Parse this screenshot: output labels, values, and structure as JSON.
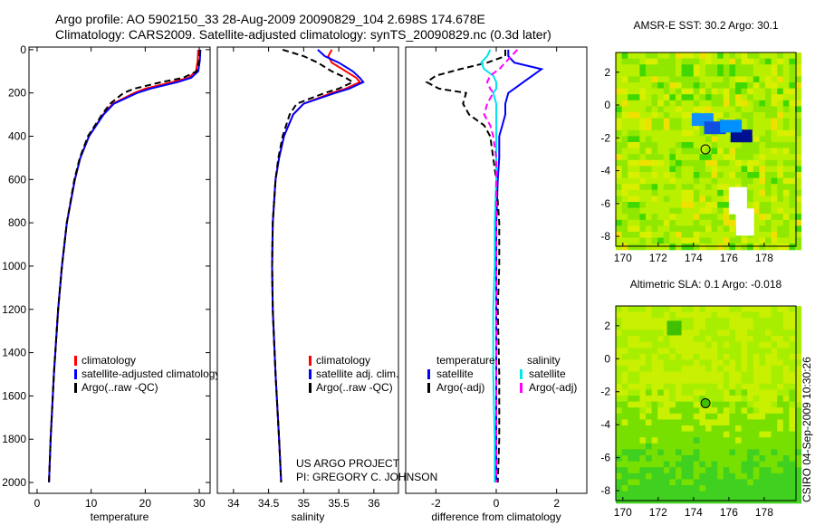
{
  "title_line1": "Argo profile: AO 5902150_33 28-Aug-2009 20090829_104 2.698S 174.678E",
  "title_line2": "Climatology: CARS2009. Satellite-adjusted climatology: synTS_20090829.nc (0.3d later)",
  "credit_line1": "US ARGO PROJECT",
  "credit_line2": "PI: GREGORY C. JOHNSON",
  "timestamp": "CSIRO 04-Sep-2009 10:30:26",
  "chart_data": [
    {
      "type": "line",
      "xlabel": "temperature",
      "xlim": [
        -1.5,
        32
      ],
      "ylim": [
        2050,
        0
      ],
      "xticks": [
        0,
        10,
        20,
        30
      ],
      "yticks": [
        0,
        200,
        400,
        600,
        800,
        1000,
        1200,
        1400,
        1600,
        1800,
        2000
      ],
      "depth": [
        0,
        50,
        100,
        130,
        150,
        180,
        200,
        250,
        300,
        400,
        500,
        600,
        800,
        1000,
        1200,
        1500,
        1800,
        2000
      ],
      "series": [
        {
          "name": "climatology",
          "color": "#ff0000",
          "dash": false,
          "values": [
            29.8,
            29.7,
            29.4,
            28,
            25,
            20,
            18,
            14,
            12.2,
            9.6,
            8,
            7,
            5.5,
            4.6,
            3.9,
            3.1,
            2.5,
            2.2
          ]
        },
        {
          "name": "satellite-adjusted climatology",
          "color": "#0000ff",
          "dash": false,
          "values": [
            30.2,
            30.1,
            29.8,
            28.5,
            26,
            21,
            18.5,
            14.2,
            12.3,
            9.6,
            8,
            7,
            5.5,
            4.6,
            3.9,
            3.1,
            2.5,
            2.2
          ]
        },
        {
          "name": "Argo(..raw -QC)",
          "color": "#000000",
          "dash": true,
          "values": [
            30.1,
            30.0,
            29.5,
            27,
            23,
            18,
            16,
            13.5,
            12,
            9.4,
            7.9,
            6.9,
            5.5,
            4.6,
            3.9,
            3.1,
            2.5,
            2.2
          ]
        }
      ]
    },
    {
      "type": "line",
      "xlabel": "salinity",
      "xlim": [
        33.77,
        36.35
      ],
      "ylim": [
        2050,
        0
      ],
      "xticks": [
        34,
        34.5,
        35,
        35.5,
        36
      ],
      "yticks": [],
      "depth": [
        0,
        30,
        60,
        100,
        130,
        150,
        180,
        200,
        250,
        300,
        400,
        500,
        600,
        800,
        1000,
        1200,
        1500,
        1800,
        2000
      ],
      "series": [
        {
          "name": "climatology",
          "color": "#ff0000",
          "dash": false,
          "values": [
            35.4,
            35.35,
            35.4,
            35.6,
            35.75,
            35.8,
            35.6,
            35.4,
            35.0,
            34.85,
            34.72,
            34.65,
            34.6,
            34.56,
            34.55,
            34.56,
            34.6,
            34.65,
            34.68
          ]
        },
        {
          "name": "satellite adj. clim.",
          "color": "#0000ff",
          "dash": false,
          "values": [
            35.2,
            35.3,
            35.5,
            35.7,
            35.8,
            35.85,
            35.65,
            35.45,
            35.0,
            34.85,
            34.72,
            34.65,
            34.6,
            34.56,
            34.55,
            34.56,
            34.6,
            34.65,
            34.68
          ]
        },
        {
          "name": "Argo(..raw -QC)",
          "color": "#000000",
          "dash": true,
          "values": [
            34.7,
            35.0,
            35.2,
            35.4,
            35.6,
            35.7,
            35.5,
            35.3,
            34.9,
            34.8,
            34.7,
            34.64,
            34.6,
            34.56,
            34.55,
            34.56,
            34.6,
            34.65,
            34.68
          ]
        }
      ]
    },
    {
      "type": "line",
      "xlabel": "difference from climatology",
      "xlim": [
        -3,
        3
      ],
      "ylim": [
        2050,
        0
      ],
      "xticks": [
        -2,
        0,
        2
      ],
      "yticks": [],
      "depth": [
        0,
        30,
        60,
        90,
        120,
        150,
        180,
        200,
        250,
        300,
        350,
        400,
        500,
        600,
        800,
        1000,
        1200,
        1500,
        1800,
        2000
      ],
      "legend_headers": [
        "temperature",
        "salinity"
      ],
      "series": [
        {
          "name": "satellite",
          "group": "temperature",
          "color": "#0000ff",
          "dash": false,
          "values": [
            0.4,
            0.4,
            0.6,
            1.5,
            1.2,
            0.9,
            0.6,
            0.4,
            0.3,
            0.3,
            0.2,
            0.1,
            0.1,
            0.05,
            0,
            0,
            0,
            0,
            0,
            0
          ]
        },
        {
          "name": "Argo(-adj)",
          "group": "temperature",
          "color": "#000000",
          "dash": true,
          "values": [
            0.3,
            0.3,
            -0.3,
            -1.2,
            -2,
            -2.3,
            -1.9,
            -1.0,
            -1.1,
            -0.9,
            -0.4,
            -0.2,
            -0.1,
            0,
            0.1,
            0.1,
            0.05,
            0.1,
            0.1,
            0.05
          ]
        },
        {
          "name": "satellite",
          "group": "salinity",
          "color": "#00e5ee",
          "dash": false,
          "values": [
            -0.2,
            -0.3,
            -0.5,
            -0.4,
            -0.1,
            0,
            0,
            -0.1,
            0,
            0,
            0,
            0,
            0,
            0,
            -0.05,
            -0.05,
            -0.1,
            -0.1,
            -0.05,
            -0.05
          ]
        },
        {
          "name": "Argo(-adj)",
          "group": "salinity",
          "color": "#ff00ff",
          "dash": true,
          "values": [
            0.7,
            0.5,
            0.3,
            0.1,
            -0.2,
            -0.3,
            -0.2,
            -0.1,
            -0.3,
            -0.4,
            -0.2,
            -0.1,
            0,
            0,
            0,
            0,
            0,
            0,
            0,
            0
          ]
        }
      ]
    },
    {
      "type": "heatmap",
      "title": "AMSR-E SST: 30.2 Argo: 30.1",
      "xlim": [
        169.6,
        179.8
      ],
      "ylim": [
        -8.6,
        3.2
      ],
      "xticks": [
        170,
        172,
        174,
        176,
        178
      ],
      "yticks": [
        2,
        0,
        -2,
        -4,
        -6,
        -8
      ],
      "marker": [
        174.678,
        -2.698
      ]
    },
    {
      "type": "heatmap",
      "title": "Altimetric SLA: 0.1 Argo: -0.018",
      "xlim": [
        169.6,
        179.8
      ],
      "ylim": [
        -8.6,
        3.2
      ],
      "xticks": [
        170,
        172,
        174,
        176,
        178
      ],
      "yticks": [
        2,
        0,
        -2,
        -4,
        -6,
        -8
      ],
      "marker": [
        174.678,
        -2.698
      ]
    }
  ]
}
